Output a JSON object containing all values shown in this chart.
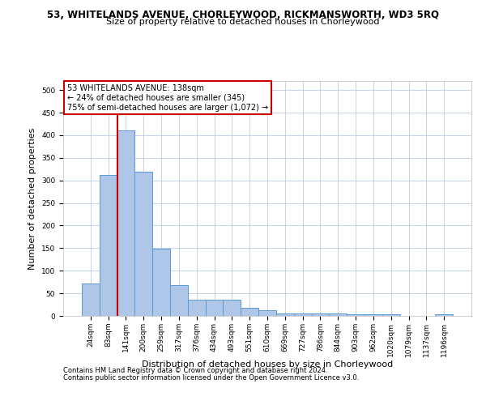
{
  "title_line1": "53, WHITELANDS AVENUE, CHORLEYWOOD, RICKMANSWORTH, WD3 5RQ",
  "title_line2": "Size of property relative to detached houses in Chorleywood",
  "xlabel": "Distribution of detached houses by size in Chorleywood",
  "ylabel": "Number of detached properties",
  "footnote1": "Contains HM Land Registry data © Crown copyright and database right 2024.",
  "footnote2": "Contains public sector information licensed under the Open Government Licence v3.0.",
  "categories": [
    "24sqm",
    "83sqm",
    "141sqm",
    "200sqm",
    "259sqm",
    "317sqm",
    "376sqm",
    "434sqm",
    "493sqm",
    "551sqm",
    "610sqm",
    "669sqm",
    "727sqm",
    "786sqm",
    "844sqm",
    "903sqm",
    "962sqm",
    "1020sqm",
    "1079sqm",
    "1137sqm",
    "1196sqm"
  ],
  "values": [
    72,
    312,
    410,
    320,
    148,
    68,
    35,
    35,
    35,
    18,
    12,
    6,
    6,
    6,
    6,
    3,
    3,
    3,
    0,
    0,
    3
  ],
  "bar_color": "#aec6e8",
  "bar_edge_color": "#5a9bd4",
  "vline_x_index": 2,
  "vline_color": "#cc0000",
  "annotation_text": "53 WHITELANDS AVENUE: 138sqm\n← 24% of detached houses are smaller (345)\n75% of semi-detached houses are larger (1,072) →",
  "annotation_box_color": "#ffffff",
  "annotation_box_edge": "#cc0000",
  "ylim": [
    0,
    520
  ],
  "yticks": [
    0,
    50,
    100,
    150,
    200,
    250,
    300,
    350,
    400,
    450,
    500
  ],
  "grid_color": "#b0c4de",
  "background_color": "#ffffff",
  "title1_fontsize": 8.5,
  "title2_fontsize": 8,
  "xlabel_fontsize": 8,
  "ylabel_fontsize": 8,
  "tick_fontsize": 6.5,
  "footnote_fontsize": 6,
  "annotation_fontsize": 7
}
